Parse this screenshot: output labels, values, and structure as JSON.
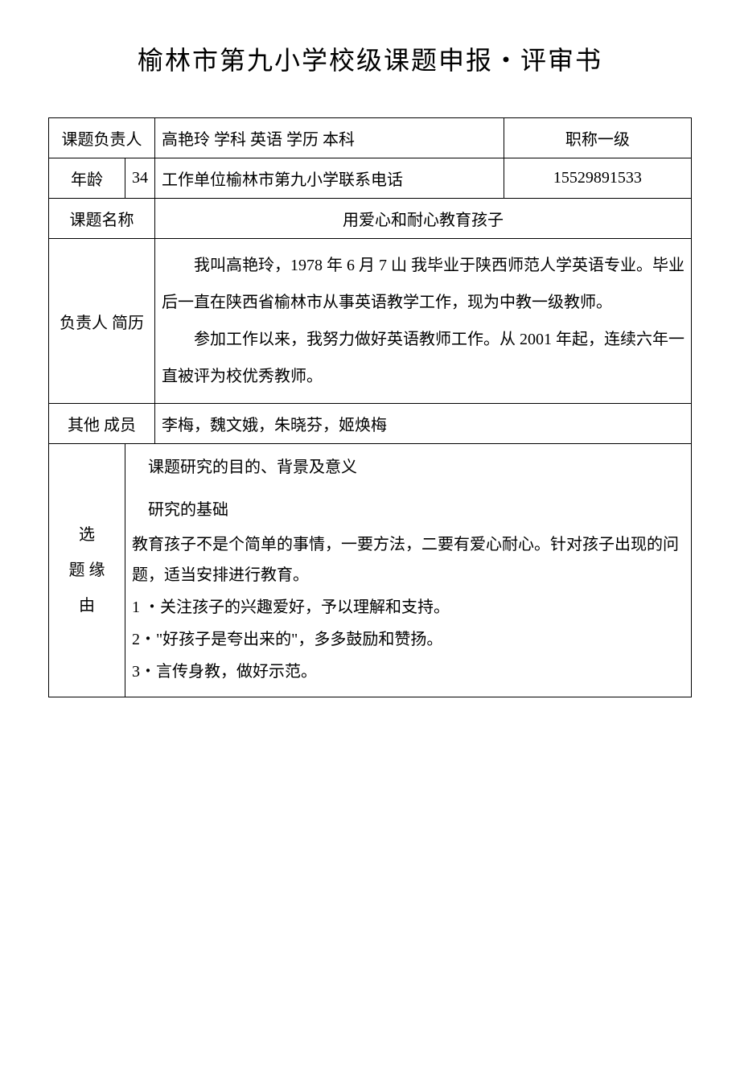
{
  "title": "榆林市第九小学校级课题申报・评审书",
  "row1": {
    "label_leader": "课题负责人",
    "value_combined": "高艳玲  学科  英语  学历  本科",
    "label_title": "职称一级"
  },
  "row2": {
    "label_age": "年龄",
    "value_age": "34",
    "workunit_combined": "工作单位榆林市第九小学联系电话",
    "value_phone": "15529891533"
  },
  "row3": {
    "label_topic": "课题名称",
    "value_topic": "用爱心和耐心教育孩子"
  },
  "row4": {
    "label_bio": "负责人  简历",
    "value_bio": "我叫高艳玲，1978 年 6 月 7 山  我毕业于陕西师范人学英语专业。毕业  后一直在陕西省榆林市从事英语教学工作，现为中教一级教师。\n参加工作以来，我努力做好英语教师工作。从 2001 年起，连续六年一直被评为校优秀教师。"
  },
  "row5": {
    "label_members": "其他  成员",
    "value_members": "李梅，魏文娥，朱晓芬，姬焕梅"
  },
  "row6": {
    "label_rationale": "选\n题  缘\n由",
    "heading1": "课题研究的目的、背景及意义",
    "heading2": "研究的基础",
    "body": "教育孩子不是个简单的事情，一要方法，二要有爱心耐心。针对孩子出现的问题，适当安排进行教育。",
    "items": [
      "1 ・关注孩子的兴趣爱好，予以理解和支持。",
      "2・\"好孩子是夸出来的\"，多多鼓励和赞扬。",
      "3・言传身教，做好示范。"
    ]
  }
}
